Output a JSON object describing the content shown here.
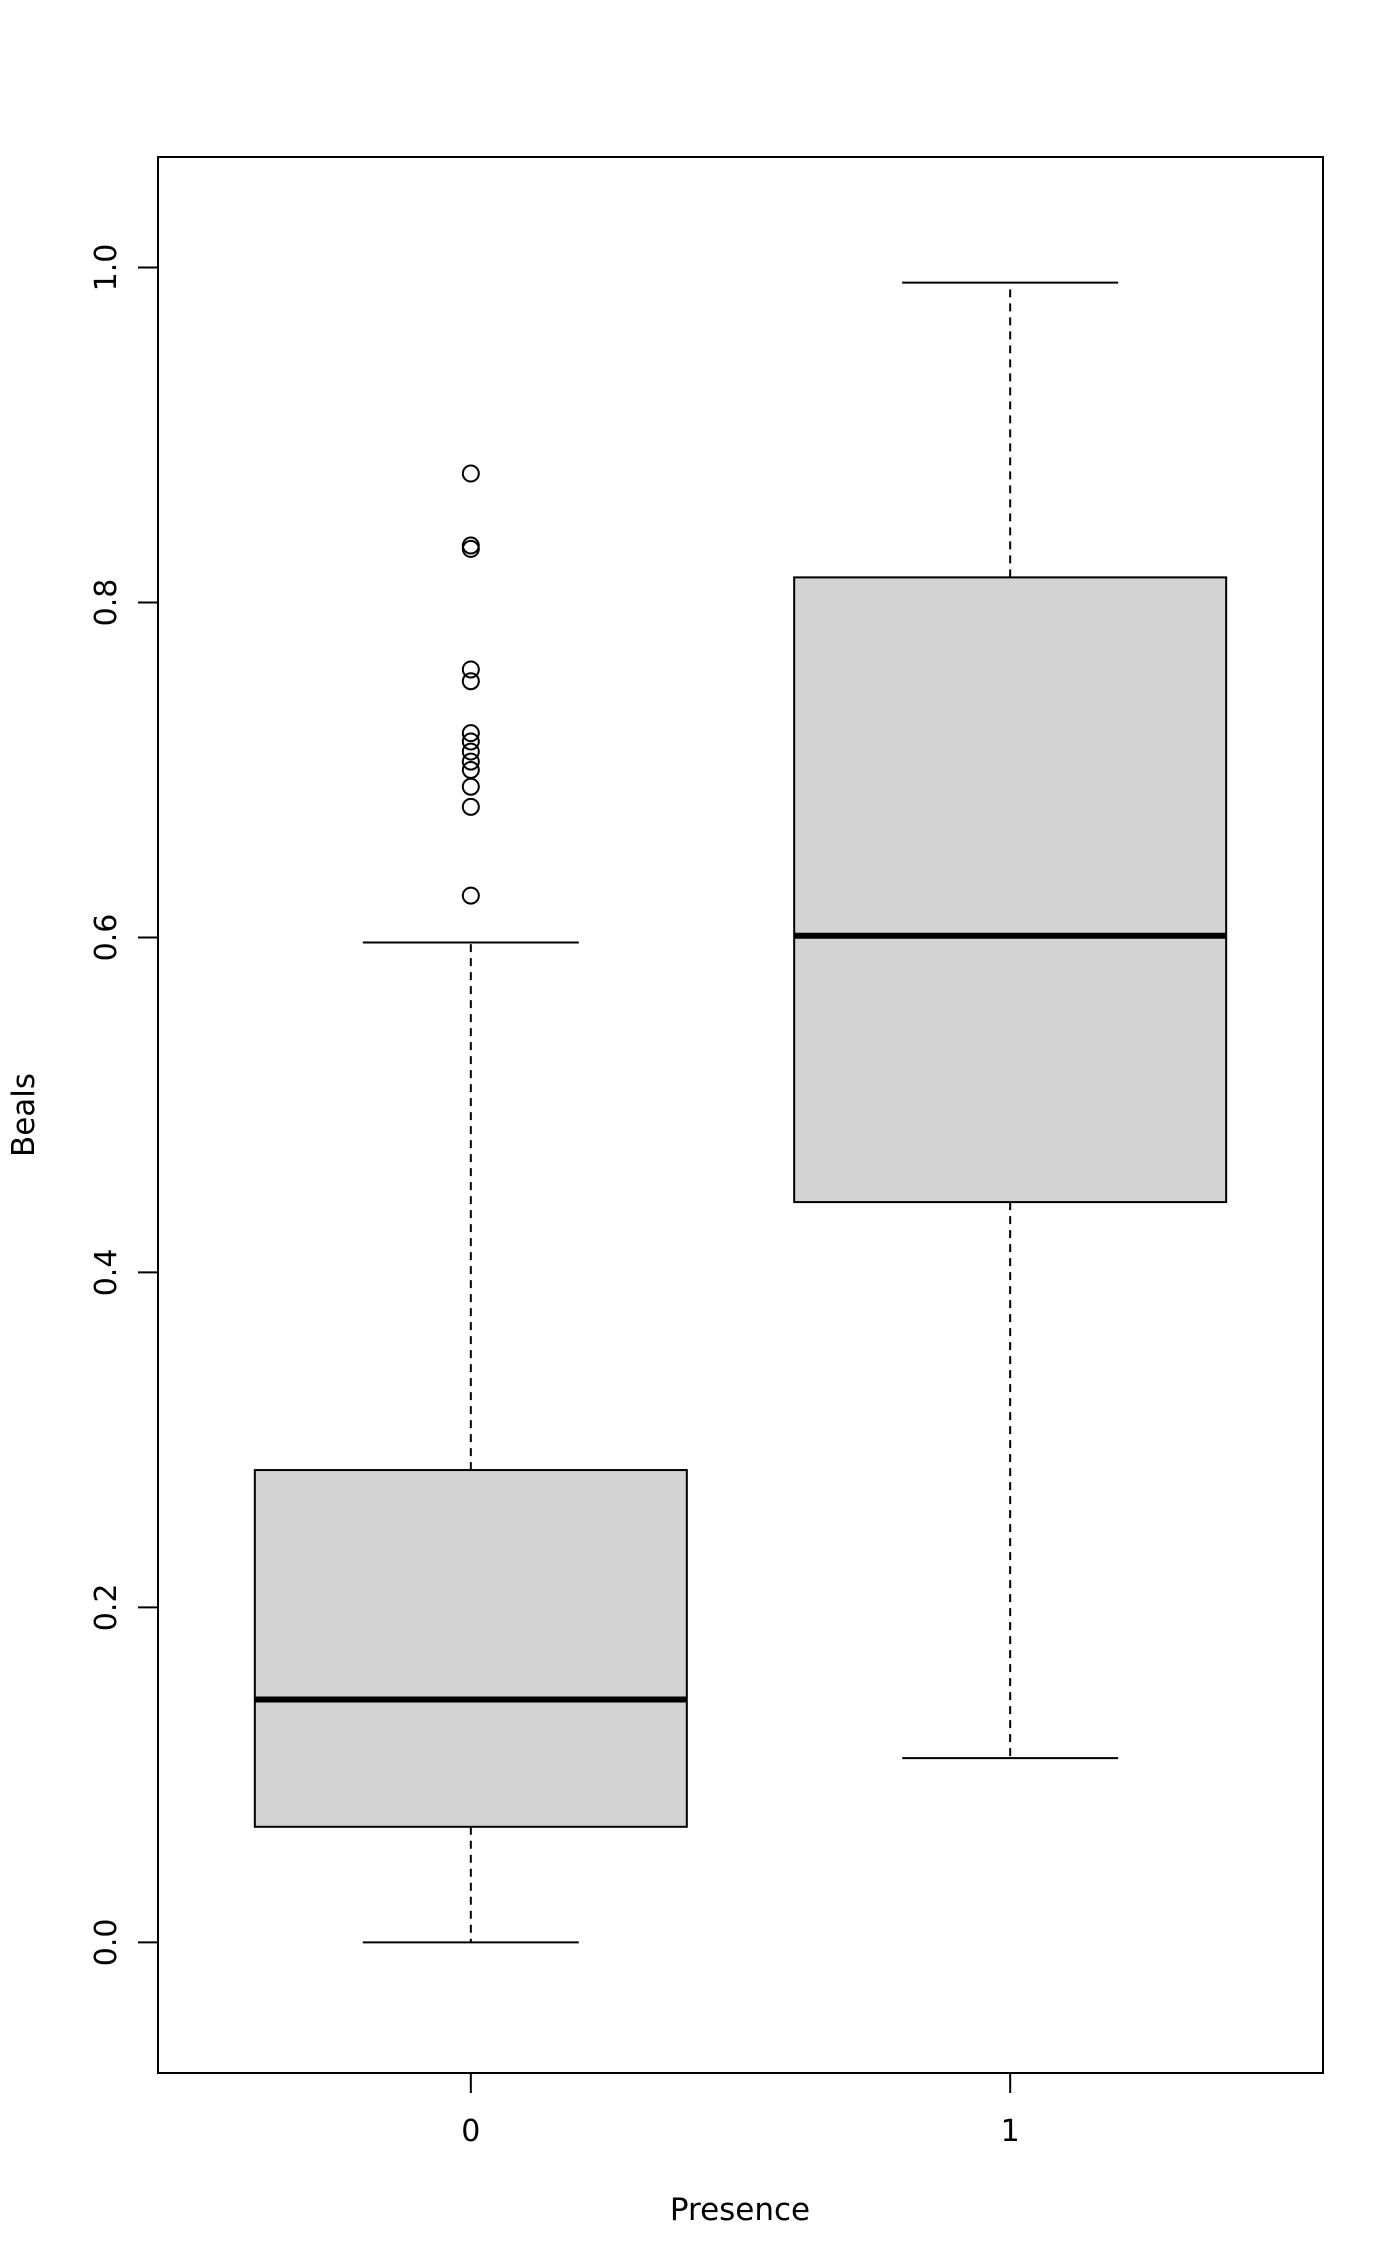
{
  "chart_data": {
    "type": "boxplot",
    "title": "",
    "xlabel": "Presence",
    "ylabel": "Beals",
    "ylim": [
      -0.078,
      1.066
    ],
    "y_ticks": [
      "0.0",
      "0.2",
      "0.4",
      "0.6",
      "0.8",
      "1.0"
    ],
    "grid": false,
    "categories": [
      "0",
      "1"
    ],
    "boxes": [
      {
        "category": "0",
        "whisker_low": 0.0,
        "q1": 0.069,
        "median": 0.145,
        "q3": 0.282,
        "whisker_high": 0.597,
        "outliers": [
          0.625,
          0.678,
          0.69,
          0.7,
          0.705,
          0.711,
          0.717,
          0.722,
          0.753,
          0.76,
          0.832,
          0.834,
          0.877
        ]
      },
      {
        "category": "1",
        "whisker_low": 0.11,
        "q1": 0.442,
        "median": 0.601,
        "q3": 0.815,
        "whisker_high": 0.991,
        "outliers": []
      }
    ],
    "colors": {
      "box_fill": "#d3d3d3",
      "stroke": "#000000"
    }
  }
}
